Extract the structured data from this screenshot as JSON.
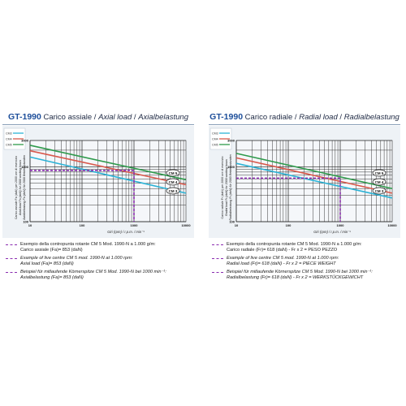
{
  "panels": [
    {
      "id": "axial",
      "title": {
        "brand": "GT-1990",
        "italian": "Carico assiale",
        "sep1": " / ",
        "english": "Axial load",
        "sep2": " / ",
        "german": "Axialbelastung"
      },
      "notes": {
        "it": {
          "line1": "Esempio della contropunta rotante CM 5 Mod. 1990-N a 1.000 g/m:",
          "line2": "Carico assiale (Fa)= 853 (daN)"
        },
        "en": {
          "line1": "Example of live centre CM 5 mod. 1990-N at 1.000 rpm:",
          "line2": "Axial load (Fa)= 853 (daN)"
        },
        "de": {
          "line1": "Beispiel für mitlaufende Körnerspitze CM 5 Mod. 1990-N bei 1000 min⁻¹:",
          "line2": "Axialbelastung (Fa)= 853 (daN)"
        }
      }
    },
    {
      "id": "radial",
      "title": {
        "brand": "GT-1990",
        "italian": "Carico radiale",
        "sep1": " / ",
        "english": "Radial load",
        "sep2": " / ",
        "german": "Radialbelastung"
      },
      "notes": {
        "it": {
          "line1": "Esempio della contropunta rotante CM 5 Mod. 1990-N a 1.000 g/m:",
          "line2": "Carico radiale (Fr)= 618 (daN) - Fr x 2 = PESO PEZZO"
        },
        "en": {
          "line1": "Example of live centre CM 5 mod. 1990-N at 1.000 rpm:",
          "line2": "Radial load (Fr)= 618 (daN) - Fr x 2 = PIECE WEIGHT"
        },
        "de": {
          "line1": "Beispiel für mitlaufende Körnerspitze CM 5 Mod. 1990-N bei 1000 min⁻¹:",
          "line2": "Radialbelastung (Fr)= 618 (daN) - Fr x 2 = WERKSTÜCKGEWICHT"
        }
      }
    }
  ],
  "chart_data": [
    {
      "type": "line",
      "title": "GT-1990 Carico assiale / Axial load / Axialbelastung",
      "xlabel": "Giri (rpm) / r.p.m. / min⁻¹",
      "ylabel": "Carico assiale Fa (daN) per 2000 ore di esercizio / Axial load Fa (daN) for 2000 working hours / Axialbelastung Fa (daN) für 2000 Betriebsstunden",
      "x_scale": "log",
      "y_scale": "log",
      "xlim": [
        10,
        10000
      ],
      "ylim": [
        100,
        3000
      ],
      "x_tick_labels": [
        "10",
        "100",
        "1000",
        "10000"
      ],
      "y_tick_labels": [
        "100",
        "1000",
        "3000"
      ],
      "grid": true,
      "legend_position": "top-left",
      "series": [
        {
          "name": "CM3",
          "color": "#2cb3d6",
          "x": [
            10,
            10000
          ],
          "y": [
            1500,
            330
          ]
        },
        {
          "name": "CM4",
          "color": "#d9594c",
          "x": [
            10,
            10000
          ],
          "y": [
            1950,
            470
          ]
        },
        {
          "name": "CM5",
          "color": "#2f9a4c",
          "x": [
            10,
            10000
          ],
          "y": [
            2450,
            580
          ]
        }
      ],
      "end_labels": [
        "CM 3",
        "CM 4",
        "CM 5"
      ],
      "example": {
        "x": 1000,
        "y": 853,
        "color": "#8a2bb0"
      }
    },
    {
      "type": "line",
      "title": "GT-1990 Carico radiale / Radial load / Radialbelastung",
      "xlabel": "Giri (rpm) / r.p.m. / min⁻¹",
      "ylabel": "Carico radiale Fr (daN) per 2000 ore di esercizio / Radial load Fr (daN) for 2000 working hours / Radialbelastung Fr (daN) für 2000 Betriebsstunden",
      "x_scale": "log",
      "y_scale": "log",
      "xlim": [
        10,
        10000
      ],
      "ylim": [
        100,
        3000
      ],
      "x_tick_labels": [
        "10",
        "100",
        "1000",
        "10000"
      ],
      "y_tick_labels": [
        "100",
        "1000",
        "3000"
      ],
      "grid": true,
      "legend_position": "top-left",
      "series": [
        {
          "name": "CM3",
          "color": "#2cb3d6",
          "x": [
            10,
            10000
          ],
          "y": [
            1150,
            270
          ]
        },
        {
          "name": "CM4",
          "color": "#d9594c",
          "x": [
            10,
            10000
          ],
          "y": [
            1450,
            330
          ]
        },
        {
          "name": "CM5",
          "color": "#2f9a4c",
          "x": [
            10,
            10000
          ],
          "y": [
            1750,
            400
          ]
        }
      ],
      "end_labels": [
        "CM 3",
        "CM 4",
        "CM 5"
      ],
      "example": {
        "x": 1000,
        "y": 618,
        "color": "#8a2bb0"
      }
    }
  ]
}
